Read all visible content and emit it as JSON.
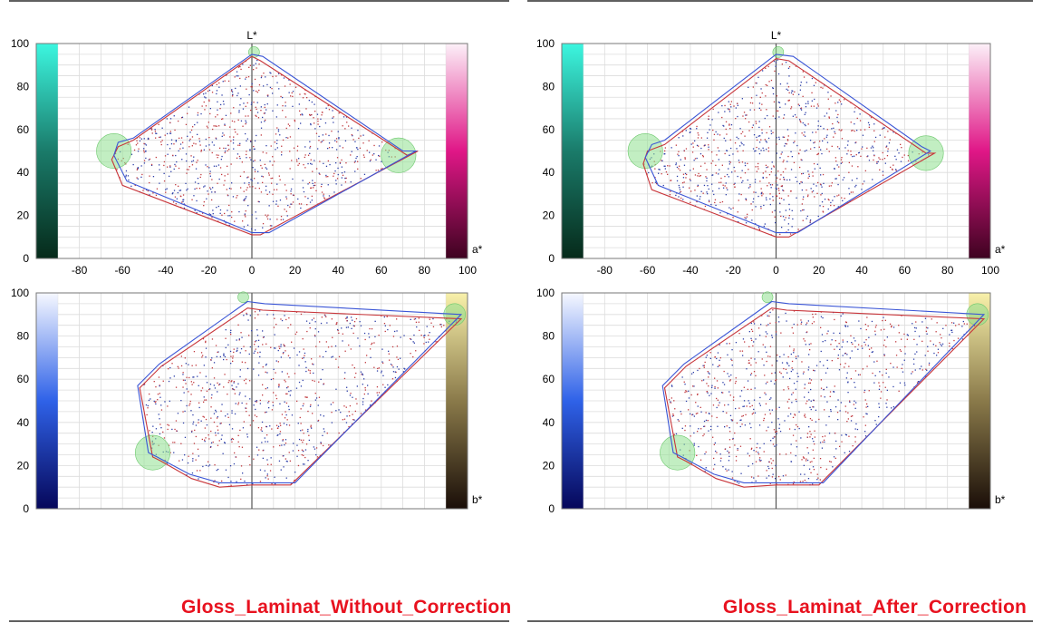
{
  "colors": {
    "grid": "#dcdcdc",
    "frame": "#777777",
    "axis": "#555555",
    "red_line": "#c8353a",
    "blue_line": "#3a55d6",
    "dot_red": "#c0393e",
    "dot_blue": "#2d3fa8",
    "primary_circle": "#8fe08f",
    "caption": "#e8121f"
  },
  "panels": [
    {
      "caption": "Gloss_Laminat_Without_Correction",
      "charts": [
        {
          "type": "scatter",
          "xaxis": "a*",
          "y_title": "L*",
          "corner_label": "a*",
          "xlim": [
            -100,
            100
          ],
          "ylim": [
            0,
            100
          ],
          "yticks": [
            "0",
            "20",
            "40",
            "60",
            "80",
            "100"
          ],
          "xticks": [
            "-80",
            "-60",
            "-40",
            "-20",
            "0",
            "20",
            "40",
            "60",
            "80",
            "100"
          ],
          "left_colorbar": "green",
          "right_colorbar": "magenta",
          "red_gamut": [
            [
              0,
              94
            ],
            [
              4,
              92
            ],
            [
              72,
              48
            ],
            [
              77,
              50
            ],
            [
              4,
              11
            ],
            [
              0,
              11
            ],
            [
              -60,
              34
            ],
            [
              -65,
              46
            ],
            [
              -62,
              52
            ],
            [
              -55,
              55
            ]
          ],
          "blue_gamut": [
            [
              0,
              95
            ],
            [
              5,
              94
            ],
            [
              70,
              50
            ],
            [
              76,
              50
            ],
            [
              8,
              12
            ],
            [
              0,
              12
            ],
            [
              -58,
              36
            ],
            [
              -64,
              48
            ],
            [
              -62,
              54
            ],
            [
              -55,
              56
            ]
          ],
          "circles": [
            [
              -64,
              50,
              8
            ],
            [
              68,
              48,
              8
            ],
            [
              1,
              96,
              2.5
            ]
          ]
        },
        {
          "type": "scatter",
          "xaxis": "b*",
          "y_title": "",
          "corner_label": "b*",
          "xlim": [
            -100,
            100
          ],
          "ylim": [
            0,
            100
          ],
          "yticks": [
            "0",
            "20",
            "40",
            "60",
            "80",
            "100"
          ],
          "xticks": [],
          "left_colorbar": "blue",
          "right_colorbar": "yellow",
          "red_gamut": [
            [
              -2,
              93
            ],
            [
              5,
              92
            ],
            [
              97,
              88
            ],
            [
              18,
              11
            ],
            [
              0,
              11
            ],
            [
              -15,
              10
            ],
            [
              -28,
              14
            ],
            [
              -42,
              22
            ],
            [
              -46,
              24
            ],
            [
              -52,
              56
            ],
            [
              -50,
              58
            ],
            [
              -42,
              66
            ]
          ],
          "blue_gamut": [
            [
              -2,
              96
            ],
            [
              6,
              95
            ],
            [
              97,
              90
            ],
            [
              20,
              12
            ],
            [
              0,
              12
            ],
            [
              -15,
              12
            ],
            [
              -29,
              16
            ],
            [
              -44,
              24
            ],
            [
              -48,
              26
            ],
            [
              -53,
              57
            ],
            [
              -51,
              59
            ],
            [
              -43,
              67
            ]
          ],
          "circles": [
            [
              -46,
              26,
              8
            ],
            [
              94,
              90,
              5
            ],
            [
              -4,
              98,
              2.5
            ]
          ]
        }
      ]
    },
    {
      "caption": "Gloss_Laminat_After_Correction",
      "charts": [
        {
          "type": "scatter",
          "xaxis": "a*",
          "y_title": "L*",
          "corner_label": "a*",
          "xlim": [
            -100,
            100
          ],
          "ylim": [
            0,
            100
          ],
          "yticks": [
            "0",
            "20",
            "40",
            "60",
            "80",
            "100"
          ],
          "xticks": [
            "-80",
            "-60",
            "-40",
            "-20",
            "0",
            "20",
            "40",
            "60",
            "80",
            "100"
          ],
          "left_colorbar": "green",
          "right_colorbar": "magenta",
          "red_gamut": [
            [
              0,
              93
            ],
            [
              6,
              92
            ],
            [
              70,
              49
            ],
            [
              74,
              49
            ],
            [
              6,
              10
            ],
            [
              0,
              10
            ],
            [
              -58,
              32
            ],
            [
              -62,
              44
            ],
            [
              -60,
              50
            ],
            [
              -52,
              53
            ]
          ],
          "blue_gamut": [
            [
              0,
              95
            ],
            [
              8,
              94
            ],
            [
              68,
              52
            ],
            [
              72,
              50
            ],
            [
              10,
              12
            ],
            [
              0,
              12
            ],
            [
              -55,
              34
            ],
            [
              -61,
              47
            ],
            [
              -58,
              53
            ],
            [
              -52,
              55
            ]
          ],
          "circles": [
            [
              -61,
              50,
              8
            ],
            [
              70,
              49,
              8
            ],
            [
              1,
              96,
              2.5
            ]
          ]
        },
        {
          "type": "scatter",
          "xaxis": "b*",
          "y_title": "",
          "corner_label": "b*",
          "xlim": [
            -100,
            100
          ],
          "ylim": [
            0,
            100
          ],
          "yticks": [
            "0",
            "20",
            "40",
            "60",
            "80",
            "100"
          ],
          "xticks": [],
          "left_colorbar": "blue",
          "right_colorbar": "yellow",
          "red_gamut": [
            [
              -2,
              93
            ],
            [
              5,
              92
            ],
            [
              97,
              88
            ],
            [
              20,
              11
            ],
            [
              0,
              11
            ],
            [
              -15,
              10
            ],
            [
              -28,
              14
            ],
            [
              -42,
              22
            ],
            [
              -46,
              24
            ],
            [
              -52,
              56
            ],
            [
              -50,
              58
            ],
            [
              -42,
              66
            ]
          ],
          "blue_gamut": [
            [
              -2,
              96
            ],
            [
              6,
              95
            ],
            [
              97,
              90
            ],
            [
              22,
              12
            ],
            [
              0,
              12
            ],
            [
              -15,
              12
            ],
            [
              -29,
              16
            ],
            [
              -44,
              24
            ],
            [
              -48,
              26
            ],
            [
              -53,
              57
            ],
            [
              -51,
              59
            ],
            [
              -43,
              67
            ]
          ],
          "circles": [
            [
              -46,
              26,
              8
            ],
            [
              94,
              90,
              5
            ],
            [
              -4,
              98,
              2.5
            ]
          ]
        }
      ]
    }
  ]
}
